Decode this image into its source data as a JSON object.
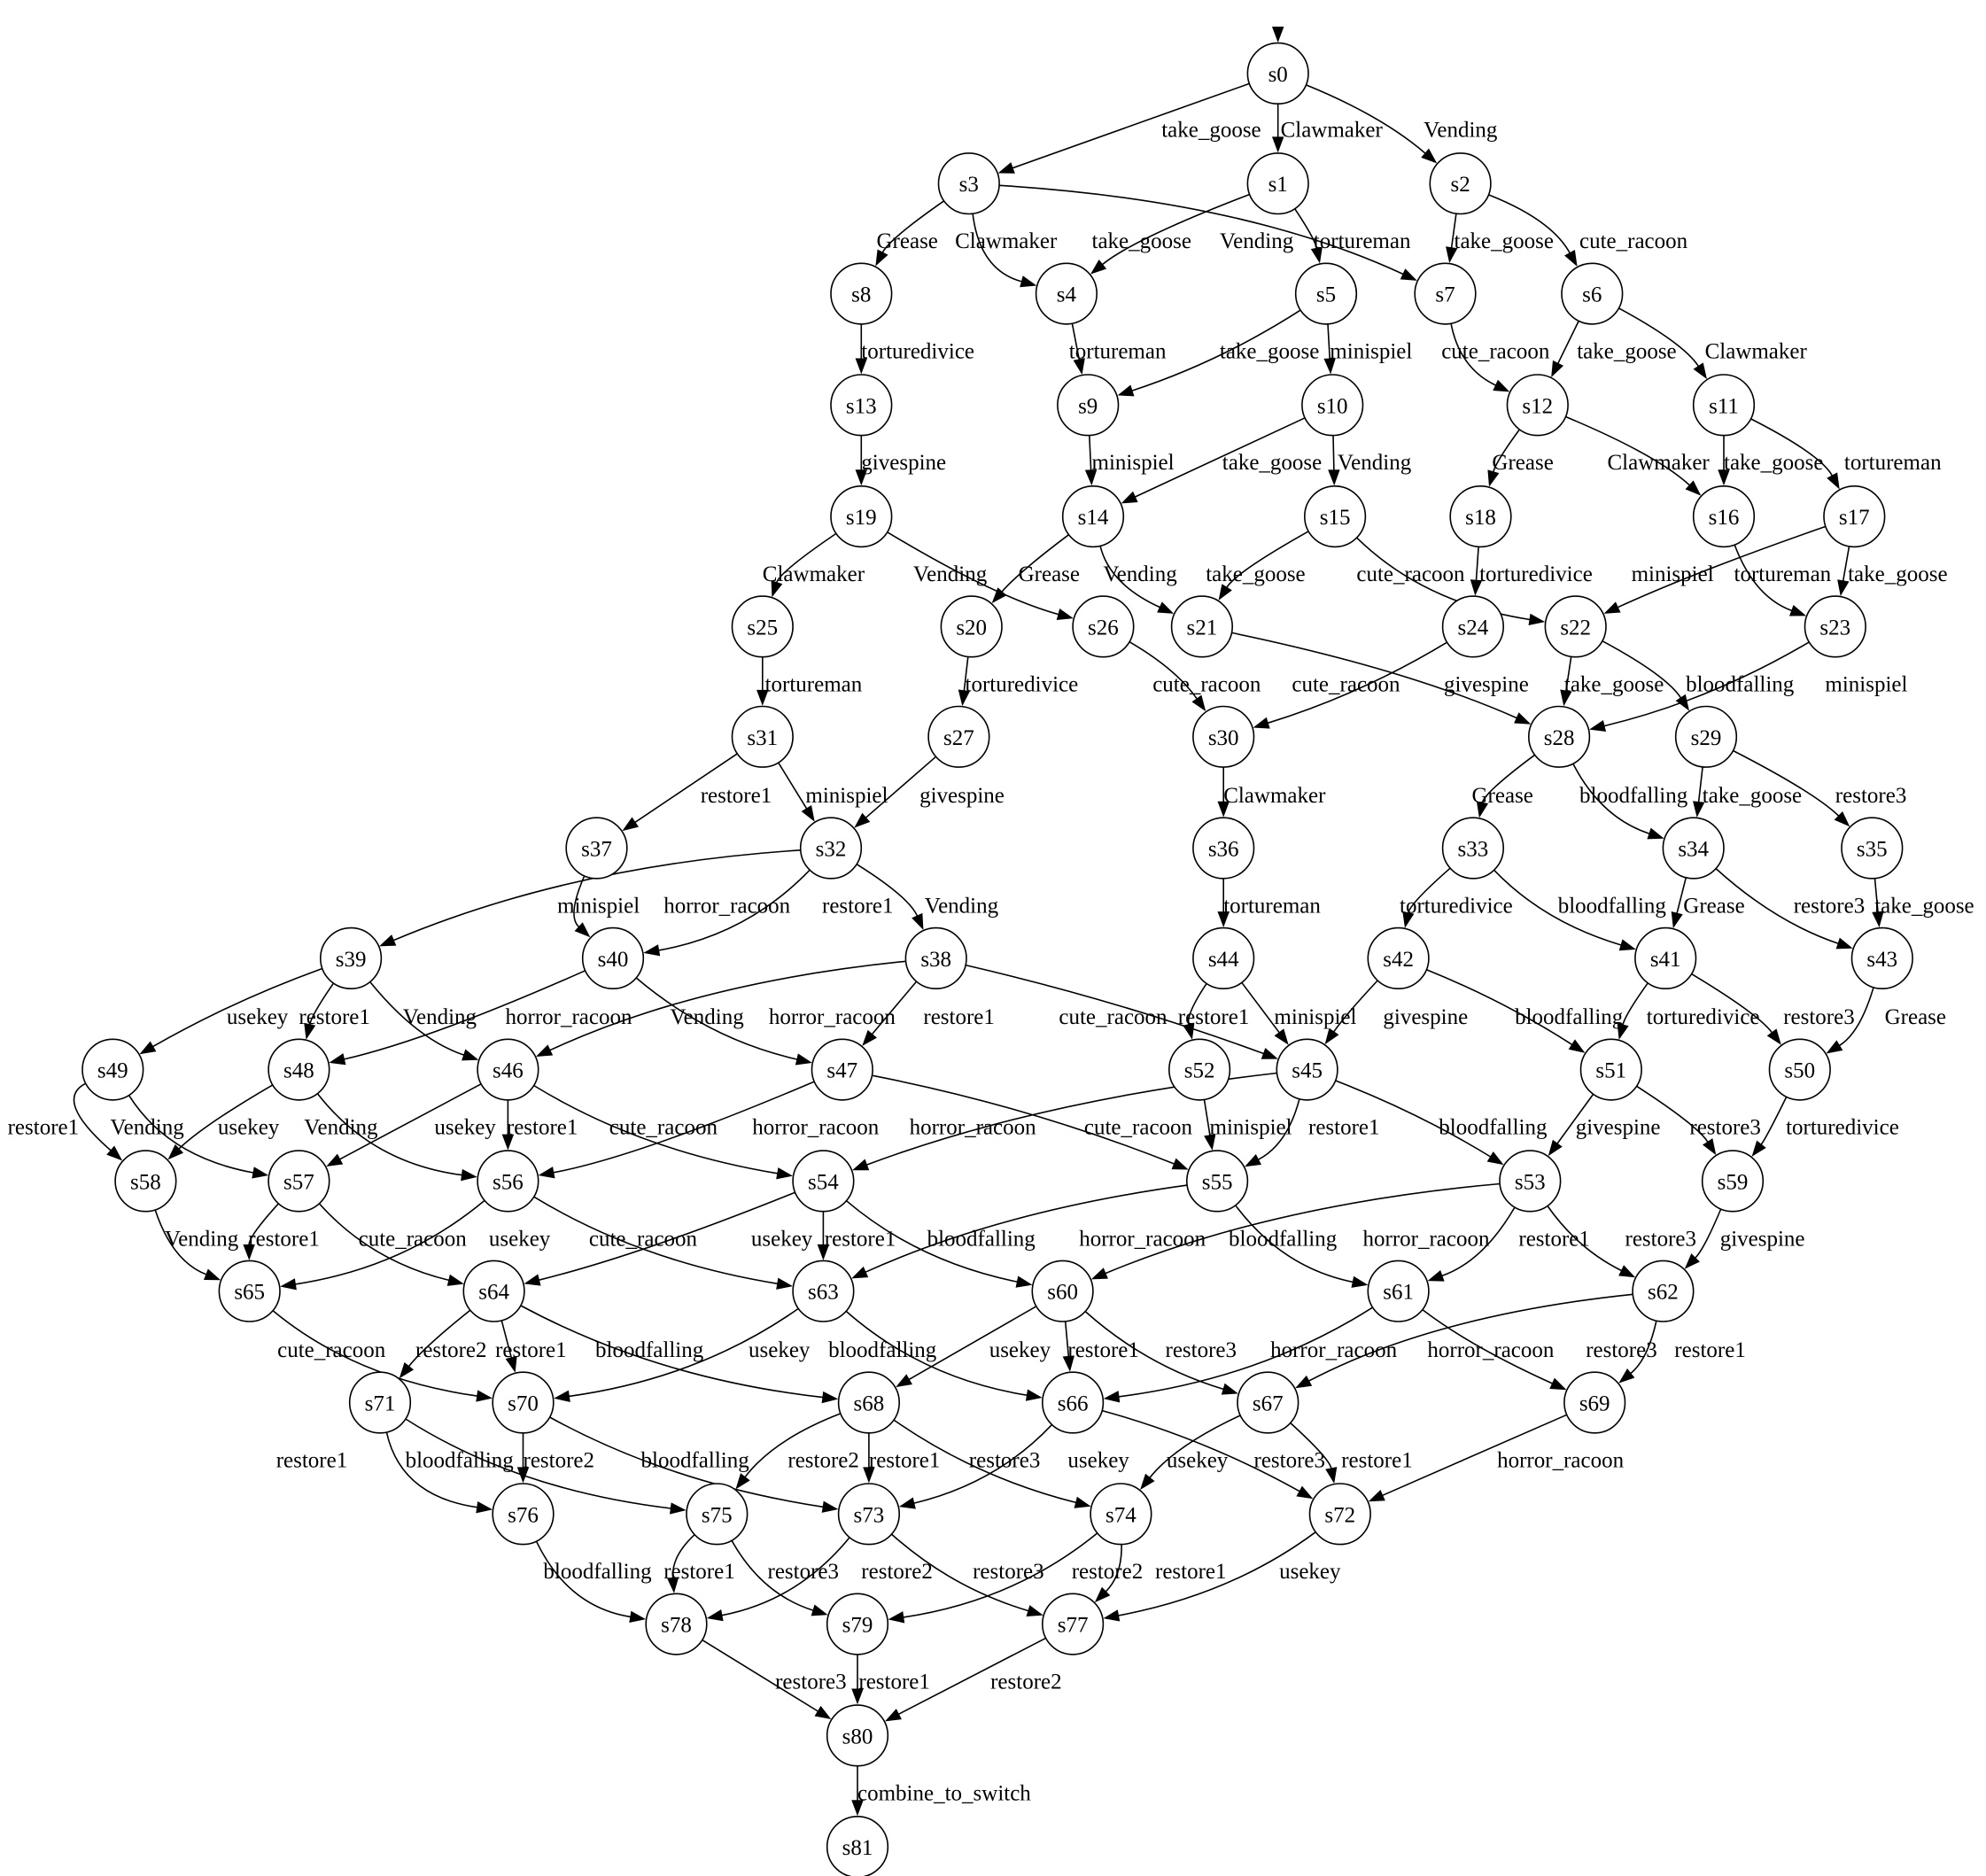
{
  "diagram": {
    "type": "state-graph",
    "colors": {
      "stroke": "#000000",
      "node_fill": "#ffffff",
      "text": "#000000"
    },
    "start_state": "s0",
    "nodes": [
      "s0",
      "s1",
      "s2",
      "s3",
      "s4",
      "s5",
      "s6",
      "s7",
      "s8",
      "s9",
      "s10",
      "s11",
      "s12",
      "s13",
      "s14",
      "s15",
      "s16",
      "s17",
      "s18",
      "s19",
      "s20",
      "s21",
      "s22",
      "s23",
      "s24",
      "s25",
      "s26",
      "s27",
      "s28",
      "s29",
      "s30",
      "s31",
      "s32",
      "s33",
      "s34",
      "s35",
      "s36",
      "s37",
      "s38",
      "s39",
      "s40",
      "s41",
      "s42",
      "s43",
      "s44",
      "s45",
      "s46",
      "s47",
      "s48",
      "s49",
      "s50",
      "s51",
      "s52",
      "s53",
      "s54",
      "s55",
      "s56",
      "s57",
      "s58",
      "s59",
      "s60",
      "s61",
      "s62",
      "s63",
      "s64",
      "s65",
      "s66",
      "s67",
      "s68",
      "s69",
      "s70",
      "s71",
      "s72",
      "s73",
      "s74",
      "s75",
      "s76",
      "s77",
      "s78",
      "s79",
      "s80",
      "s81"
    ],
    "edges": [
      {
        "from": "s0",
        "to": "s3",
        "label": "take_goose"
      },
      {
        "from": "s0",
        "to": "s1",
        "label": "Clawmaker"
      },
      {
        "from": "s0",
        "to": "s2",
        "label": "Vending"
      },
      {
        "from": "s3",
        "to": "s8",
        "label": "Grease"
      },
      {
        "from": "s3",
        "to": "s4",
        "label": "Clawmaker"
      },
      {
        "from": "s3",
        "to": "s7",
        "label": "Vending"
      },
      {
        "from": "s1",
        "to": "s4",
        "label": "take_goose"
      },
      {
        "from": "s1",
        "to": "s5",
        "label": "tortureman"
      },
      {
        "from": "s2",
        "to": "s7",
        "label": "take_goose"
      },
      {
        "from": "s2",
        "to": "s6",
        "label": "cute_racoon"
      },
      {
        "from": "s8",
        "to": "s13",
        "label": "torturedivice"
      },
      {
        "from": "s4",
        "to": "s9",
        "label": "tortureman"
      },
      {
        "from": "s5",
        "to": "s9",
        "label": "take_goose"
      },
      {
        "from": "s5",
        "to": "s10",
        "label": "minispiel"
      },
      {
        "from": "s7",
        "to": "s12",
        "label": "cute_racoon"
      },
      {
        "from": "s6",
        "to": "s12",
        "label": "take_goose"
      },
      {
        "from": "s6",
        "to": "s11",
        "label": "Clawmaker"
      },
      {
        "from": "s13",
        "to": "s19",
        "label": "givespine"
      },
      {
        "from": "s9",
        "to": "s14",
        "label": "minispiel"
      },
      {
        "from": "s10",
        "to": "s14",
        "label": "take_goose"
      },
      {
        "from": "s10",
        "to": "s15",
        "label": "Vending"
      },
      {
        "from": "s12",
        "to": "s18",
        "label": "Grease"
      },
      {
        "from": "s12",
        "to": "s16",
        "label": "Clawmaker"
      },
      {
        "from": "s11",
        "to": "s16",
        "label": "take_goose"
      },
      {
        "from": "s11",
        "to": "s17",
        "label": "tortureman"
      },
      {
        "from": "s19",
        "to": "s25",
        "label": "Clawmaker"
      },
      {
        "from": "s19",
        "to": "s26",
        "label": "Vending"
      },
      {
        "from": "s14",
        "to": "s20",
        "label": "Grease"
      },
      {
        "from": "s14",
        "to": "s21",
        "label": "Vending"
      },
      {
        "from": "s15",
        "to": "s21",
        "label": "take_goose"
      },
      {
        "from": "s15",
        "to": "s22",
        "label": "cute_racoon"
      },
      {
        "from": "s18",
        "to": "s24",
        "label": "torturedivice"
      },
      {
        "from": "s17",
        "to": "s22",
        "label": "minispiel"
      },
      {
        "from": "s16",
        "to": "s23",
        "label": "tortureman"
      },
      {
        "from": "s17",
        "to": "s23",
        "label": "take_goose"
      },
      {
        "from": "s25",
        "to": "s31",
        "label": "tortureman"
      },
      {
        "from": "s20",
        "to": "s27",
        "label": "torturedivice"
      },
      {
        "from": "s26",
        "to": "s30",
        "label": "cute_racoon"
      },
      {
        "from": "s21",
        "to": "s28",
        "label": "cute_racoon"
      },
      {
        "from": "s24",
        "to": "s30",
        "label": "givespine"
      },
      {
        "from": "s22",
        "to": "s28",
        "label": "take_goose"
      },
      {
        "from": "s22",
        "to": "s29",
        "label": "bloodfalling"
      },
      {
        "from": "s23",
        "to": "s28",
        "label": "minispiel"
      },
      {
        "from": "s31",
        "to": "s37",
        "label": "restore1"
      },
      {
        "from": "s31",
        "to": "s32",
        "label": "minispiel"
      },
      {
        "from": "s27",
        "to": "s32",
        "label": "givespine"
      },
      {
        "from": "s30",
        "to": "s36",
        "label": "Clawmaker"
      },
      {
        "from": "s28",
        "to": "s33",
        "label": "Grease"
      },
      {
        "from": "s28",
        "to": "s34",
        "label": "bloodfalling"
      },
      {
        "from": "s29",
        "to": "s34",
        "label": "take_goose"
      },
      {
        "from": "s29",
        "to": "s35",
        "label": "restore3"
      },
      {
        "from": "s37",
        "to": "s40",
        "label": "minispiel"
      },
      {
        "from": "s32",
        "to": "s39",
        "label": "horror_racoon"
      },
      {
        "from": "s32",
        "to": "s40",
        "label": "restore1"
      },
      {
        "from": "s32",
        "to": "s38",
        "label": "Vending"
      },
      {
        "from": "s36",
        "to": "s44",
        "label": "tortureman"
      },
      {
        "from": "s33",
        "to": "s42",
        "label": "torturedivice"
      },
      {
        "from": "s33",
        "to": "s41",
        "label": "bloodfalling"
      },
      {
        "from": "s34",
        "to": "s41",
        "label": "Grease"
      },
      {
        "from": "s34",
        "to": "s43",
        "label": "restore3"
      },
      {
        "from": "s35",
        "to": "s43",
        "label": "take_goose"
      },
      {
        "from": "s39",
        "to": "s49",
        "label": "usekey"
      },
      {
        "from": "s39",
        "to": "s48",
        "label": "restore1"
      },
      {
        "from": "s39",
        "to": "s46",
        "label": "Vending"
      },
      {
        "from": "s40",
        "to": "s48",
        "label": "horror_racoon"
      },
      {
        "from": "s40",
        "to": "s47",
        "label": "Vending"
      },
      {
        "from": "s38",
        "to": "s46",
        "label": "horror_racoon"
      },
      {
        "from": "s38",
        "to": "s47",
        "label": "restore1"
      },
      {
        "from": "s38",
        "to": "s45",
        "label": "cute_racoon"
      },
      {
        "from": "s44",
        "to": "s52",
        "label": "restore1"
      },
      {
        "from": "s44",
        "to": "s45",
        "label": "minispiel"
      },
      {
        "from": "s42",
        "to": "s45",
        "label": "givespine"
      },
      {
        "from": "s42",
        "to": "s51",
        "label": "bloodfalling"
      },
      {
        "from": "s41",
        "to": "s51",
        "label": "torturedivice"
      },
      {
        "from": "s41",
        "to": "s50",
        "label": "restore3"
      },
      {
        "from": "s43",
        "to": "s50",
        "label": "Grease"
      },
      {
        "from": "s49",
        "to": "s58",
        "label": "restore1"
      },
      {
        "from": "s49",
        "to": "s57",
        "label": "Vending"
      },
      {
        "from": "s48",
        "to": "s58",
        "label": "usekey"
      },
      {
        "from": "s48",
        "to": "s56",
        "label": "Vending"
      },
      {
        "from": "s46",
        "to": "s57",
        "label": "usekey"
      },
      {
        "from": "s46",
        "to": "s56",
        "label": "restore1"
      },
      {
        "from": "s46",
        "to": "s54",
        "label": "cute_racoon"
      },
      {
        "from": "s47",
        "to": "s56",
        "label": "horror_racoon"
      },
      {
        "from": "s47",
        "to": "s55",
        "label": "cute_racoon"
      },
      {
        "from": "s45",
        "to": "s54",
        "label": "horror_racoon"
      },
      {
        "from": "s52",
        "to": "s55",
        "label": "minispiel"
      },
      {
        "from": "s45",
        "to": "s55",
        "label": "restore1"
      },
      {
        "from": "s45",
        "to": "s53",
        "label": "bloodfalling"
      },
      {
        "from": "s51",
        "to": "s53",
        "label": "givespine"
      },
      {
        "from": "s51",
        "to": "s59",
        "label": "restore3"
      },
      {
        "from": "s50",
        "to": "s59",
        "label": "torturedivice"
      },
      {
        "from": "s58",
        "to": "s65",
        "label": "Vending"
      },
      {
        "from": "s57",
        "to": "s65",
        "label": "restore1"
      },
      {
        "from": "s57",
        "to": "s64",
        "label": "cute_racoon"
      },
      {
        "from": "s56",
        "to": "s65",
        "label": "usekey"
      },
      {
        "from": "s56",
        "to": "s63",
        "label": "cute_racoon"
      },
      {
        "from": "s54",
        "to": "s64",
        "label": "usekey"
      },
      {
        "from": "s54",
        "to": "s63",
        "label": "restore1"
      },
      {
        "from": "s54",
        "to": "s60",
        "label": "bloodfalling"
      },
      {
        "from": "s55",
        "to": "s63",
        "label": "horror_racoon"
      },
      {
        "from": "s55",
        "to": "s61",
        "label": "bloodfalling"
      },
      {
        "from": "s53",
        "to": "s60",
        "label": "horror_racoon"
      },
      {
        "from": "s53",
        "to": "s61",
        "label": "restore1"
      },
      {
        "from": "s53",
        "to": "s62",
        "label": "restore3"
      },
      {
        "from": "s59",
        "to": "s62",
        "label": "givespine"
      },
      {
        "from": "s65",
        "to": "s70",
        "label": "cute_racoon"
      },
      {
        "from": "s64",
        "to": "s71",
        "label": "restore2"
      },
      {
        "from": "s64",
        "to": "s70",
        "label": "restore1"
      },
      {
        "from": "s64",
        "to": "s68",
        "label": "bloodfalling"
      },
      {
        "from": "s63",
        "to": "s70",
        "label": "usekey"
      },
      {
        "from": "s63",
        "to": "s66",
        "label": "bloodfalling"
      },
      {
        "from": "s60",
        "to": "s68",
        "label": "usekey"
      },
      {
        "from": "s60",
        "to": "s66",
        "label": "restore1"
      },
      {
        "from": "s60",
        "to": "s67",
        "label": "restore3"
      },
      {
        "from": "s61",
        "to": "s66",
        "label": "horror_racoon"
      },
      {
        "from": "s61",
        "to": "s69",
        "label": "restore3"
      },
      {
        "from": "s62",
        "to": "s67",
        "label": "horror_racoon"
      },
      {
        "from": "s62",
        "to": "s69",
        "label": "restore1"
      },
      {
        "from": "s71",
        "to": "s76",
        "label": "restore1"
      },
      {
        "from": "s71",
        "to": "s75",
        "label": "bloodfalling"
      },
      {
        "from": "s70",
        "to": "s76",
        "label": "restore2"
      },
      {
        "from": "s70",
        "to": "s73",
        "label": "bloodfalling"
      },
      {
        "from": "s68",
        "to": "s75",
        "label": "restore2"
      },
      {
        "from": "s68",
        "to": "s73",
        "label": "restore1"
      },
      {
        "from": "s68",
        "to": "s74",
        "label": "restore3"
      },
      {
        "from": "s66",
        "to": "s73",
        "label": "usekey"
      },
      {
        "from": "s66",
        "to": "s72",
        "label": "restore3"
      },
      {
        "from": "s67",
        "to": "s74",
        "label": "usekey"
      },
      {
        "from": "s67",
        "to": "s72",
        "label": "restore1"
      },
      {
        "from": "s69",
        "to": "s72",
        "label": "horror_racoon"
      },
      {
        "from": "s76",
        "to": "s78",
        "label": "bloodfalling"
      },
      {
        "from": "s75",
        "to": "s78",
        "label": "restore1"
      },
      {
        "from": "s75",
        "to": "s79",
        "label": "restore3"
      },
      {
        "from": "s73",
        "to": "s78",
        "label": "restore2"
      },
      {
        "from": "s73",
        "to": "s77",
        "label": "restore3"
      },
      {
        "from": "s74",
        "to": "s79",
        "label": "restore2"
      },
      {
        "from": "s74",
        "to": "s77",
        "label": "restore1"
      },
      {
        "from": "s72",
        "to": "s77",
        "label": "usekey"
      },
      {
        "from": "s78",
        "to": "s80",
        "label": "restore3"
      },
      {
        "from": "s79",
        "to": "s80",
        "label": "restore1"
      },
      {
        "from": "s77",
        "to": "s80",
        "label": "restore2"
      },
      {
        "from": "s80",
        "to": "s81",
        "label": "combine_to_switch"
      }
    ]
  }
}
